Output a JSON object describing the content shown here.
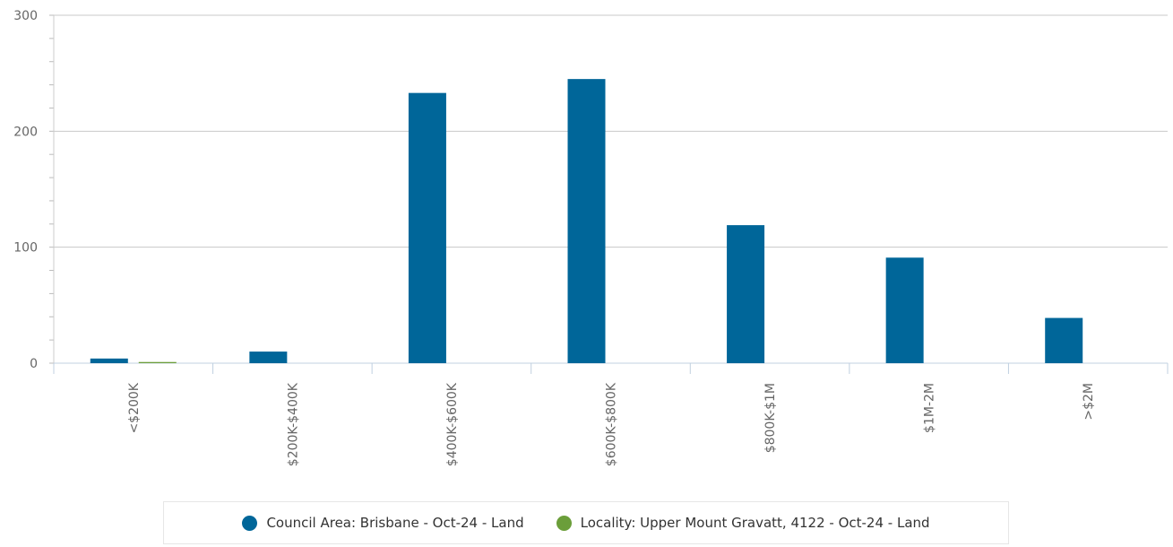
{
  "colors": {
    "series_1": "#006699",
    "series_2": "#6b9e3a",
    "grid": "#c8c8c8",
    "axis": "#c0d0e0"
  },
  "legend": {
    "items": [
      {
        "label": "Council Area: Brisbane - Oct-24 - Land",
        "color": "#006699"
      },
      {
        "label": "Locality: Upper Mount Gravatt, 4122 - Oct-24 - Land",
        "color": "#6b9e3a"
      }
    ]
  },
  "chart_data": {
    "type": "bar",
    "title": "",
    "xlabel": "",
    "ylabel": "",
    "ylim": [
      0,
      300
    ],
    "yticks": [
      0,
      100,
      200,
      300
    ],
    "grid": true,
    "legend_position": "bottom",
    "categories": [
      "<$200K",
      "$200K-$400K",
      "$400K-$600K",
      "$600K-$800K",
      "$800K-$1M",
      "$1M-2M",
      ">$2M"
    ],
    "series": [
      {
        "name": "Council Area: Brisbane - Oct-24 - Land",
        "color": "#006699",
        "values": [
          4,
          10,
          233,
          245,
          119,
          91,
          39
        ]
      },
      {
        "name": "Locality: Upper Mount Gravatt, 4122 - Oct-24 - Land",
        "color": "#6b9e3a",
        "values": [
          1,
          0,
          0,
          0,
          0,
          0,
          0
        ]
      }
    ]
  }
}
